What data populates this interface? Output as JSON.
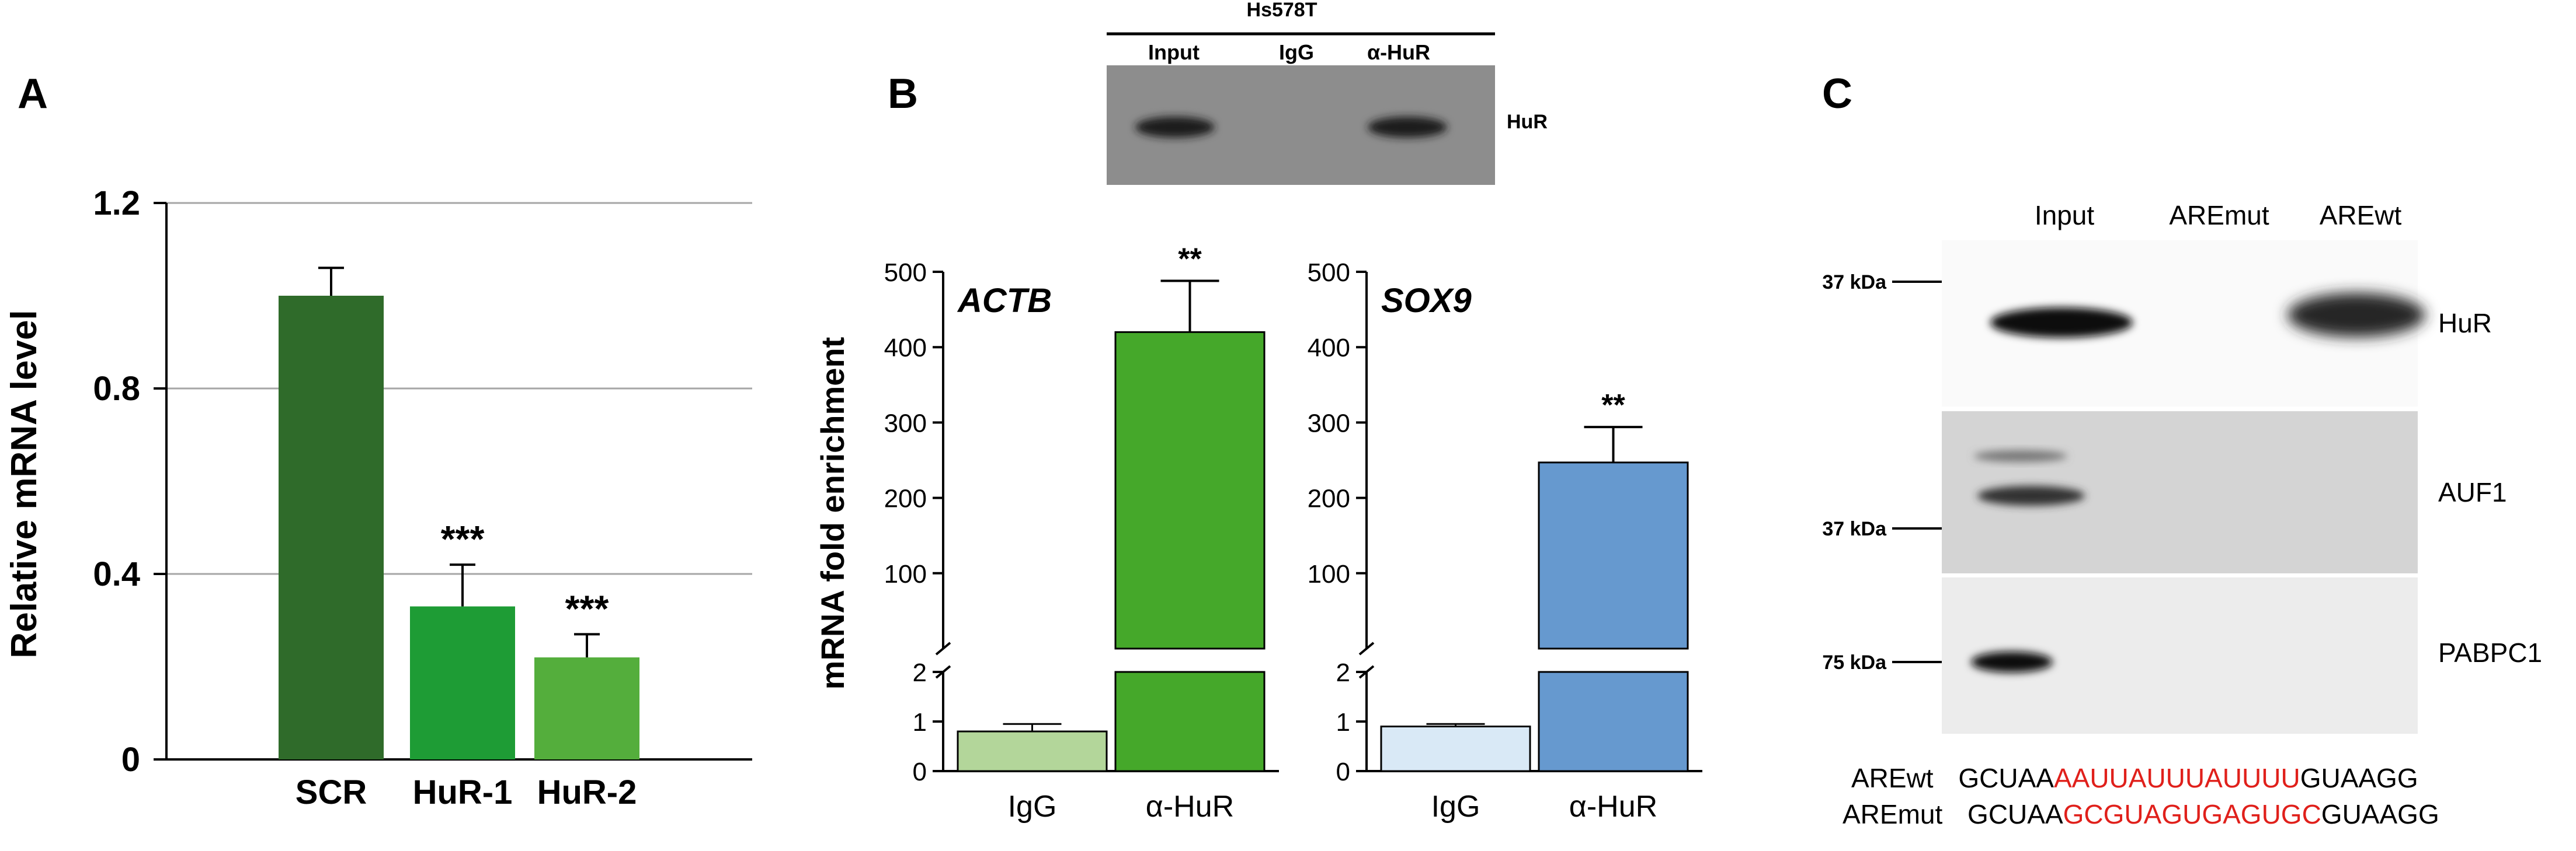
{
  "panels": {
    "a": "A",
    "b": "B",
    "c": "C"
  },
  "chart_data": [
    {
      "panel": "A",
      "type": "bar",
      "categories": [
        "SCR",
        "HuR-1",
        "HuR-2"
      ],
      "values": [
        1.0,
        0.33,
        0.22
      ],
      "errors": [
        0.06,
        0.09,
        0.05
      ],
      "significance": [
        "",
        "***",
        "***"
      ],
      "colors": [
        "#2f6b2a",
        "#1e9c35",
        "#54ae3c"
      ],
      "xlabel": "",
      "ylabel": "Relative mRNA level",
      "ylim": [
        0,
        1.2
      ],
      "yticks": [
        "0",
        "0.4",
        "0.8",
        "1.2"
      ],
      "grid": true
    },
    {
      "panel": "B",
      "type": "bar",
      "title": "ACTB",
      "categories": [
        "IgG",
        "α-HuR"
      ],
      "values": [
        0.8,
        420
      ],
      "errors": [
        0.15,
        68
      ],
      "significance": [
        "",
        "**"
      ],
      "colors": [
        "#b3d69a",
        "#45a82a"
      ],
      "ylabel": "mRNA fold enrichment",
      "axis_break": true,
      "ylim_lower": [
        0,
        2
      ],
      "ylim_upper": [
        0,
        500
      ],
      "yticks_lower": [
        "0",
        "1",
        "2"
      ],
      "yticks_upper": [
        "100",
        "200",
        "300",
        "400",
        "500"
      ]
    },
    {
      "panel": "B",
      "type": "bar",
      "title": "SOX9",
      "categories": [
        "IgG",
        "α-HuR"
      ],
      "values": [
        0.9,
        247
      ],
      "errors": [
        0.05,
        47
      ],
      "significance": [
        "",
        "**"
      ],
      "colors": [
        "#d9e9f6",
        "#6699cf"
      ],
      "axis_break": true,
      "ylim_lower": [
        0,
        2
      ],
      "ylim_upper": [
        0,
        500
      ],
      "yticks_lower": [
        "0",
        "1",
        "2"
      ],
      "yticks_upper": [
        "100",
        "200",
        "300",
        "400",
        "500"
      ]
    }
  ],
  "blot_b": {
    "cell_line": "Hs578T",
    "lanes": [
      "Input",
      "IgG",
      "α-HuR"
    ],
    "band_label": "HuR",
    "band_presence": [
      1,
      0,
      1
    ]
  },
  "blot_c": {
    "lanes": [
      "Input",
      "AREmut",
      "AREwt"
    ],
    "markers": [
      "37 kDa",
      "37 kDa",
      "75 kDa"
    ],
    "rows": [
      {
        "label": "HuR",
        "band_presence": [
          1,
          0,
          1
        ]
      },
      {
        "label": "AUF1",
        "band_presence": [
          1,
          0,
          0
        ]
      },
      {
        "label": "PABPC1",
        "band_presence": [
          1,
          0,
          0
        ]
      }
    ]
  },
  "sequences": [
    {
      "name": "AREwt",
      "prefix": "GCUAA",
      "core": "AAUUAUUUAUUUU",
      "suffix": "GUAAGG"
    },
    {
      "name": "AREmut",
      "prefix": "GCUAA",
      "core": "GCGUAGUGAGUGC",
      "suffix": "GUAAGG"
    }
  ],
  "colors": {
    "sequence_core": "#e0201b",
    "blot_bg": "#8d8d8d",
    "blot_light": "#ececec"
  }
}
